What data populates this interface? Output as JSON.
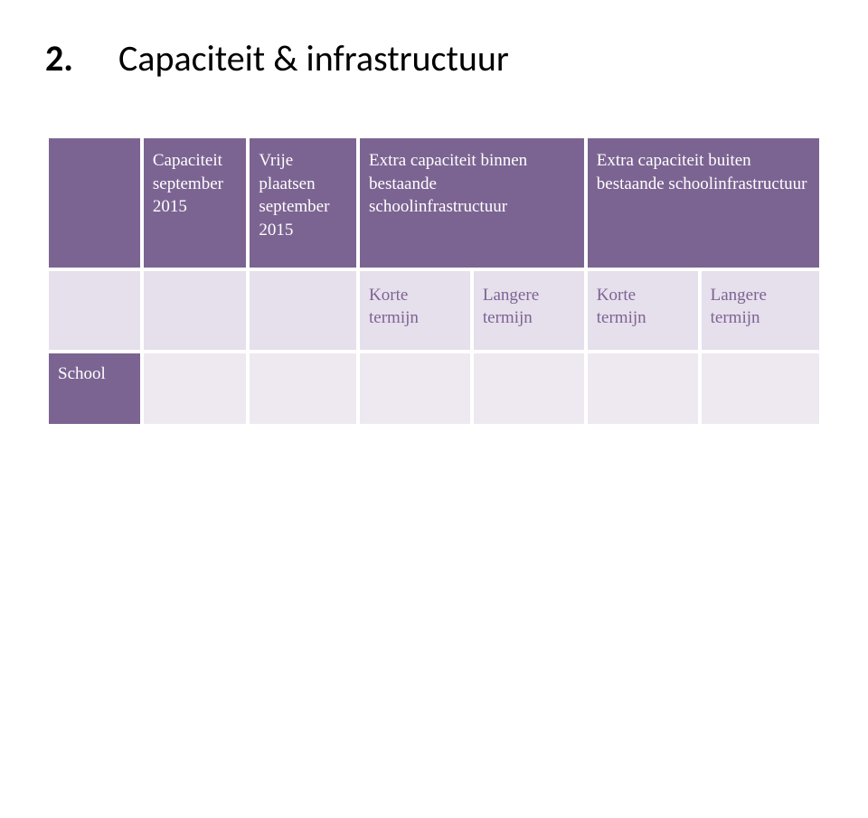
{
  "heading": {
    "number": "2.",
    "title": "Capaciteit & infrastructuur"
  },
  "colors": {
    "header_bg": "#7c6492",
    "header_text": "#ffffff",
    "sub_bg": "#e6dfec",
    "sub_text": "#7c6492",
    "row_bg": "#eee9f0",
    "lead_bg": "#7c6492"
  },
  "table": {
    "header": {
      "lead": "",
      "col1": "Capaciteit september 2015",
      "col2": "Vrije plaatsen september 2015",
      "col3": "Extra capaciteit binnen bestaande schoolinfrastructuur",
      "col4": "Extra capaciteit buiten bestaande schoolinfrastructuur"
    },
    "subheader": {
      "lead": "",
      "s1": "",
      "s2": "",
      "s3": "Korte termijn",
      "s4": "Langere termijn",
      "s5": "Korte termijn",
      "s6": "Langere termijn"
    },
    "row": {
      "lead": "School",
      "c1": "",
      "c2": "",
      "c3": "",
      "c4": "",
      "c5": "",
      "c6": ""
    }
  }
}
